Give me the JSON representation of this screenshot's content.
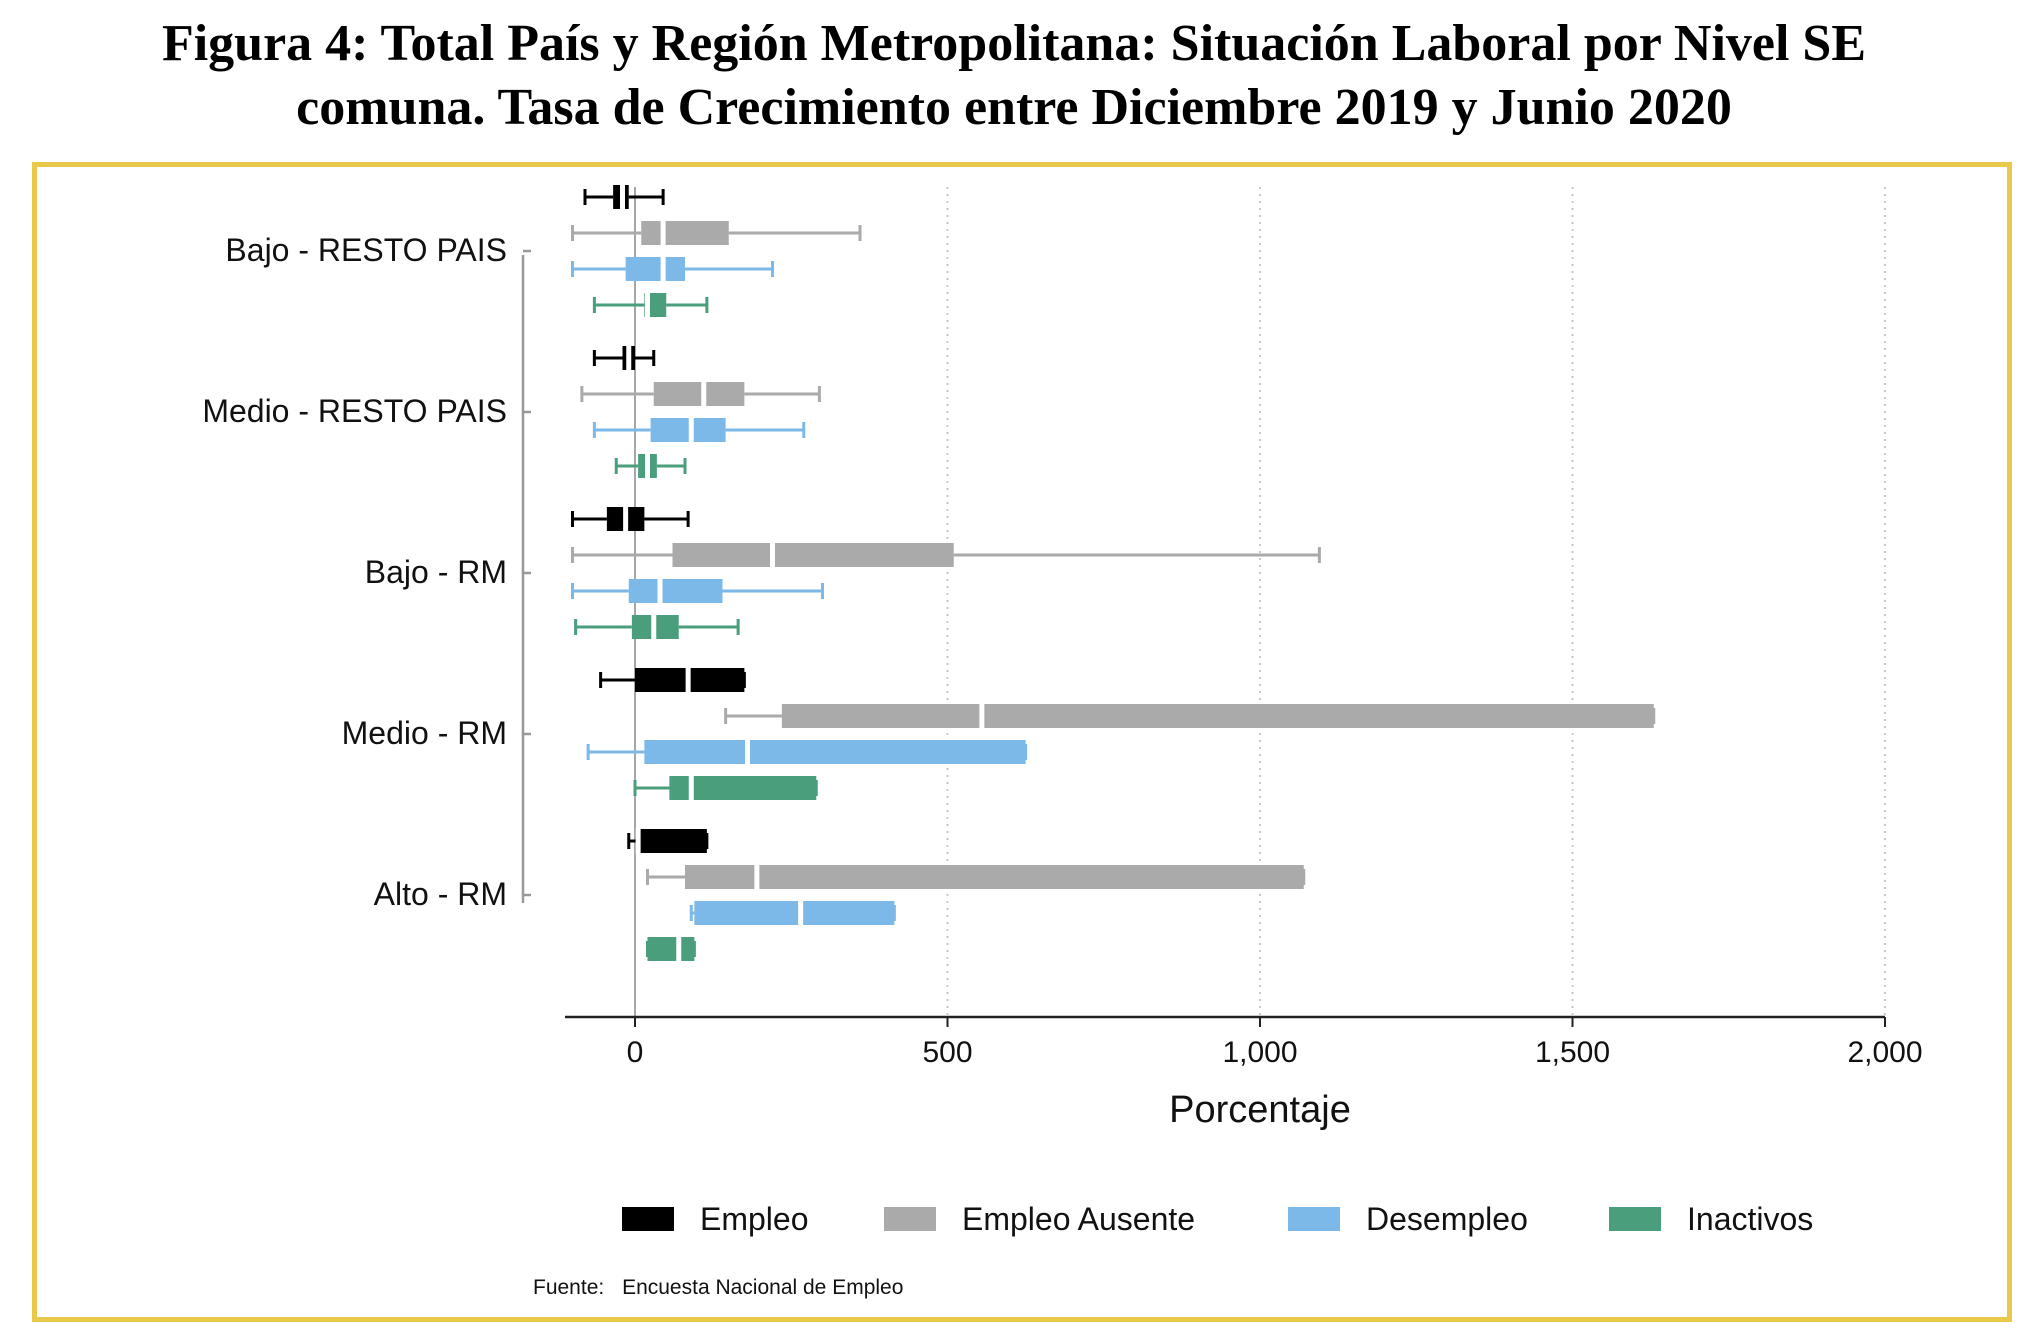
{
  "title": {
    "line1": "Figura 4: Total País y Región Metropolitana: Situación Laboral por Nivel SE",
    "line2": "comuna. Tasa de Crecimiento entre Diciembre 2019 y Junio 2020"
  },
  "source_label": "Fuente:",
  "source_text": "Encuesta Nacional de Empleo",
  "chart_data": {
    "type": "boxplot",
    "orientation": "horizontal",
    "xlabel": "Porcentaje",
    "xlim": [
      -100,
      2000
    ],
    "xticks": [
      0,
      500,
      1000,
      1500,
      2000
    ],
    "xtick_labels": [
      "0",
      "500",
      "1,000",
      "1,500",
      "2,000"
    ],
    "grid": "vertical dotted",
    "legend_position": "bottom",
    "categories": [
      "Bajo - RESTO PAIS",
      "Medio - RESTO PAIS",
      "Bajo - RM",
      "Medio - RM",
      "Alto - RM"
    ],
    "series": [
      {
        "name": "Empleo",
        "color": "#000000",
        "boxes": [
          {
            "min": -80,
            "q1": -35,
            "median": -20,
            "q3": -10,
            "max": 45
          },
          {
            "min": -65,
            "q1": -20,
            "median": -10,
            "q3": 0,
            "max": 30
          },
          {
            "min": -100,
            "q1": -45,
            "median": -15,
            "q3": 15,
            "max": 85
          },
          {
            "min": -55,
            "q1": 0,
            "median": 85,
            "q3": 175,
            "max": 175
          },
          {
            "min": -10,
            "q1": 5,
            "median": 5,
            "q3": 115,
            "max": 115
          }
        ]
      },
      {
        "name": "Empleo Ausente",
        "color": "#aaaaaa",
        "boxes": [
          {
            "min": -100,
            "q1": 10,
            "median": 45,
            "q3": 150,
            "max": 360
          },
          {
            "min": -85,
            "q1": 30,
            "median": 110,
            "q3": 175,
            "max": 295
          },
          {
            "min": -100,
            "q1": 60,
            "median": 220,
            "q3": 510,
            "max": 1095
          },
          {
            "min": 145,
            "q1": 235,
            "median": 555,
            "q3": 1630,
            "max": 1630
          },
          {
            "min": 20,
            "q1": 80,
            "median": 195,
            "q3": 1070,
            "max": 1070
          }
        ]
      },
      {
        "name": "Desempleo",
        "color": "#7db9e8",
        "boxes": [
          {
            "min": -100,
            "q1": -15,
            "median": 45,
            "q3": 80,
            "max": 220
          },
          {
            "min": -65,
            "q1": 25,
            "median": 90,
            "q3": 145,
            "max": 270
          },
          {
            "min": -100,
            "q1": -10,
            "median": 40,
            "q3": 140,
            "max": 300
          },
          {
            "min": -75,
            "q1": 15,
            "median": 180,
            "q3": 625,
            "max": 625
          },
          {
            "min": 90,
            "q1": 95,
            "median": 265,
            "q3": 415,
            "max": 415
          }
        ]
      },
      {
        "name": "Inactivos",
        "color": "#4a9e7c",
        "boxes": [
          {
            "min": -65,
            "q1": 15,
            "median": 20,
            "q3": 50,
            "max": 115
          },
          {
            "min": -30,
            "q1": 5,
            "median": 20,
            "q3": 35,
            "max": 80
          },
          {
            "min": -95,
            "q1": -5,
            "median": 30,
            "q3": 70,
            "max": 165
          },
          {
            "min": 0,
            "q1": 55,
            "median": 90,
            "q3": 290,
            "max": 290
          },
          {
            "min": 20,
            "q1": 20,
            "median": 70,
            "q3": 95,
            "max": 95
          }
        ]
      }
    ]
  }
}
